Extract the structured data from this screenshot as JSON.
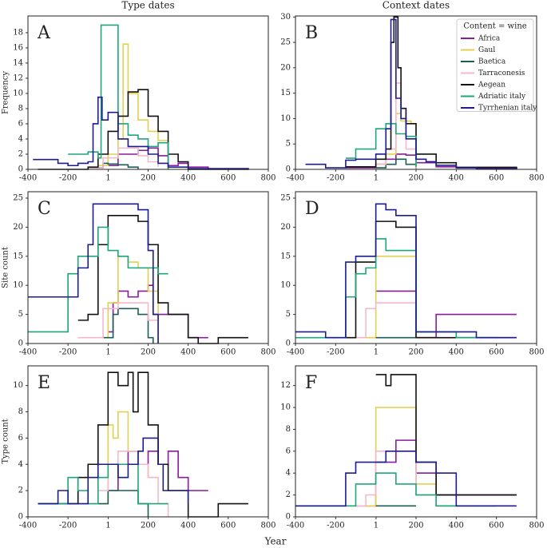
{
  "chart_data": [
    {
      "type": "line",
      "title": "Type dates",
      "panel_label": "A",
      "ylabel": "Frequency",
      "xlim": [
        -400,
        800
      ],
      "xticks": [
        -400,
        -200,
        1,
        200,
        400,
        600,
        800
      ],
      "ylim": [
        0,
        20.2
      ],
      "yticks": [
        0,
        2,
        4,
        6,
        8,
        10,
        12,
        14,
        16,
        18
      ],
      "series": [
        {
          "name": "Africa",
          "color": "#8b1a9c",
          "x": [
            -50,
            50,
            150,
            200,
            250,
            300,
            350,
            400,
            500
          ],
          "values": [
            0.5,
            2,
            2.5,
            2.8,
            1.8,
            0.5,
            0.8,
            0.3,
            0.1
          ]
        },
        {
          "name": "Gaul",
          "color": "#e3cf52",
          "x": [
            -50,
            0,
            50,
            75,
            100,
            150,
            200,
            250,
            300
          ],
          "values": [
            0.5,
            2,
            4,
            16.5,
            10,
            6.5,
            5,
            3.8,
            3.8
          ]
        },
        {
          "name": "Baetica",
          "color": "#1b5e55",
          "x": [
            -100,
            -25,
            0,
            50,
            100,
            150
          ],
          "values": [
            0.2,
            0.8,
            0.7,
            0.6,
            0.3,
            0
          ]
        },
        {
          "name": "Tarraconesis",
          "color": "#f5b8ca",
          "x": [
            -100,
            -25,
            50,
            150,
            200,
            250
          ],
          "values": [
            0.2,
            1.5,
            2.8,
            1.8,
            1,
            0.3
          ]
        },
        {
          "name": "Aegean",
          "color": "#111111",
          "x": [
            -350,
            -100,
            -50,
            0,
            50,
            100,
            150,
            200,
            250,
            300,
            350,
            400,
            700
          ],
          "values": [
            0,
            0.3,
            2,
            5,
            7,
            10.2,
            10.5,
            7,
            5,
            2,
            1,
            0,
            0.1
          ]
        },
        {
          "name": "Adriatic italy",
          "color": "#1ea67b",
          "x": [
            -200,
            -100,
            -50,
            -35,
            50,
            100,
            150,
            200,
            250,
            300
          ],
          "values": [
            2,
            2.3,
            1.5,
            19,
            6,
            4.5,
            4,
            3,
            3.5,
            0
          ]
        },
        {
          "name": "Tyrrhenian italy",
          "color": "#1c1c8e",
          "x": [
            -375,
            -250,
            -200,
            -150,
            -100,
            -75,
            -50,
            -30,
            0,
            50,
            100,
            200,
            250,
            300,
            400,
            700
          ],
          "values": [
            1.3,
            0.8,
            0.5,
            0.8,
            1,
            6,
            9.5,
            6.5,
            7.5,
            4,
            3,
            2,
            0.8,
            0.3,
            0.1,
            0
          ]
        }
      ]
    },
    {
      "type": "line",
      "title": "Context dates",
      "panel_label": "B",
      "legend_title": "Content = wine",
      "legend": "upper right",
      "xlim": [
        -400,
        800
      ],
      "xticks": [
        -400,
        -200,
        1,
        200,
        400,
        600,
        800
      ],
      "ylim": [
        0,
        30.2
      ],
      "yticks": [
        0,
        5,
        10,
        15,
        20,
        25,
        30
      ],
      "series": [
        {
          "name": "Africa",
          "color": "#8b1a9c",
          "x": [
            -150,
            0,
            50,
            100,
            150,
            200,
            300,
            400,
            700
          ],
          "values": [
            0.3,
            1,
            2,
            3,
            2.8,
            1.3,
            0.5,
            0.3,
            0
          ]
        },
        {
          "name": "Gaul",
          "color": "#e3cf52",
          "x": [
            0,
            50,
            100,
            125,
            175,
            200
          ],
          "values": [
            1,
            3,
            11,
            9.5,
            9,
            0.5
          ]
        },
        {
          "name": "Baetica",
          "color": "#1b5e55",
          "x": [
            0,
            50,
            100,
            150,
            200
          ],
          "values": [
            0.3,
            1,
            2,
            1,
            0.2
          ]
        },
        {
          "name": "Tarraconesis",
          "color": "#f5b8ca",
          "x": [
            0,
            50,
            100,
            125,
            150,
            200
          ],
          "values": [
            1,
            4,
            17,
            10,
            4,
            0.3
          ]
        },
        {
          "name": "Aegean",
          "color": "#111111",
          "x": [
            -150,
            0,
            50,
            75,
            90,
            110,
            125,
            150,
            200,
            300,
            400,
            700
          ],
          "values": [
            0.5,
            2,
            4,
            25,
            30,
            20,
            12,
            9,
            3,
            1.3,
            0.4,
            0
          ]
        },
        {
          "name": "Adriatic italy",
          "color": "#1ea67b",
          "x": [
            -150,
            -100,
            0,
            50,
            100,
            150,
            200
          ],
          "values": [
            2.2,
            4,
            8,
            9,
            7,
            6.5,
            0.5
          ]
        },
        {
          "name": "Tyrrhenian italy",
          "color": "#1c1c8e",
          "x": [
            -350,
            -250,
            -150,
            -100,
            0,
            50,
            75,
            100,
            125,
            150,
            200,
            250,
            300,
            400,
            500,
            700
          ],
          "values": [
            1,
            0.3,
            1.8,
            2,
            3,
            8,
            29.5,
            14,
            10,
            6,
            2,
            1.5,
            0.8,
            0.3,
            0.1,
            0
          ]
        }
      ]
    },
    {
      "type": "line",
      "panel_label": "C",
      "ylabel": "Site count",
      "xlim": [
        -400,
        800
      ],
      "xticks": [
        -400,
        -200,
        1,
        200,
        400,
        600,
        800
      ],
      "ylim": [
        0,
        26.1
      ],
      "yticks": [
        0,
        5,
        10,
        15,
        20,
        25
      ],
      "series": [
        {
          "name": "Africa",
          "color": "#8b1a9c",
          "x": [
            0,
            25,
            50,
            100,
            150,
            200,
            225,
            400,
            500
          ],
          "values": [
            2,
            7,
            9,
            8,
            9,
            10,
            5,
            1,
            1
          ]
        },
        {
          "name": "Gaul",
          "color": "#e3cf52",
          "x": [
            -50,
            0,
            50,
            100,
            150,
            200,
            250
          ],
          "values": [
            1,
            7,
            15,
            14,
            13,
            9,
            0
          ]
        },
        {
          "name": "Baetica",
          "color": "#1b5e55",
          "x": [
            -25,
            25,
            50,
            150,
            200,
            225
          ],
          "values": [
            1,
            5,
            6,
            5,
            1,
            0
          ]
        },
        {
          "name": "Tarraconesis",
          "color": "#f5b8ca",
          "x": [
            -150,
            -50,
            -25,
            50,
            150,
            200,
            250
          ],
          "values": [
            1,
            1,
            6,
            7,
            7,
            4,
            0
          ]
        },
        {
          "name": "Aegean",
          "color": "#111111",
          "x": [
            -150,
            -100,
            -50,
            0,
            150,
            200,
            250,
            300,
            400,
            450,
            550,
            700
          ],
          "values": [
            4,
            5,
            17,
            22,
            21,
            17,
            7,
            5,
            1,
            0,
            1,
            1
          ]
        },
        {
          "name": "Adriatic italy",
          "color": "#1ea67b",
          "x": [
            -400,
            -200,
            -150,
            -50,
            0,
            50,
            100,
            250,
            300
          ],
          "values": [
            2,
            12,
            15,
            20,
            16,
            15,
            13,
            12,
            12
          ]
        },
        {
          "name": "Tyrrhenian italy",
          "color": "#1c1c8e",
          "x": [
            -400,
            -150,
            -100,
            -75,
            150,
            200,
            225,
            250
          ],
          "values": [
            8,
            13,
            17,
            24,
            23,
            16,
            5,
            0
          ]
        }
      ]
    },
    {
      "type": "line",
      "panel_label": "D",
      "xlim": [
        -400,
        800
      ],
      "xticks": [
        -400,
        -200,
        1,
        200,
        400,
        600,
        800
      ],
      "ylim": [
        0,
        26.1
      ],
      "yticks": [
        0,
        5,
        10,
        15,
        20,
        25
      ],
      "series": [
        {
          "name": "Africa",
          "color": "#8b1a9c",
          "x": [
            0,
            200,
            300,
            700
          ],
          "values": [
            9,
            1,
            5,
            5
          ]
        },
        {
          "name": "Gaul",
          "color": "#e3cf52",
          "x": [
            -150,
            0,
            200,
            300
          ],
          "values": [
            1,
            15,
            1,
            1
          ]
        },
        {
          "name": "Baetica",
          "color": "#1b5e55",
          "x": [
            0,
            200
          ],
          "values": [
            1,
            1
          ]
        },
        {
          "name": "Tarraconesis",
          "color": "#f5b8ca",
          "x": [
            -100,
            -50,
            0,
            200,
            300
          ],
          "values": [
            1,
            6,
            7,
            1,
            1
          ]
        },
        {
          "name": "Aegean",
          "color": "#111111",
          "x": [
            -150,
            -100,
            0,
            100,
            200,
            700
          ],
          "values": [
            1,
            14,
            21,
            20,
            1,
            1
          ]
        },
        {
          "name": "Adriatic italy",
          "color": "#1ea67b",
          "x": [
            -400,
            -150,
            -100,
            -50,
            0,
            50,
            200,
            300,
            400,
            600
          ],
          "values": [
            1,
            8,
            12,
            13,
            18,
            16,
            2,
            2,
            1,
            1
          ]
        },
        {
          "name": "Tyrrhenian italy",
          "color": "#1c1c8e",
          "x": [
            -400,
            -250,
            -150,
            -100,
            0,
            50,
            100,
            200,
            500,
            700
          ],
          "values": [
            2,
            1,
            14,
            15,
            24,
            23,
            22,
            2,
            1,
            1
          ]
        }
      ]
    },
    {
      "type": "line",
      "panel_label": "E",
      "ylabel": "Type count",
      "xlabel": "Year",
      "xlim": [
        -400,
        800
      ],
      "xticks": [
        -400,
        -200,
        1,
        200,
        400,
        600,
        800
      ],
      "ylim": [
        0,
        11.5
      ],
      "yticks": [
        0,
        2,
        4,
        6,
        8,
        10
      ],
      "series": [
        {
          "name": "Africa",
          "color": "#8b1a9c",
          "x": [
            0,
            50,
            100,
            150,
            200,
            250,
            300,
            350,
            400,
            500
          ],
          "values": [
            2,
            4,
            5,
            4,
            5,
            4,
            5,
            3,
            2,
            2
          ]
        },
        {
          "name": "Gaul",
          "color": "#e3cf52",
          "x": [
            -50,
            0,
            25,
            50,
            100,
            150,
            200,
            250
          ],
          "values": [
            1,
            7,
            6,
            8,
            5,
            4,
            3,
            3
          ]
        },
        {
          "name": "Baetica",
          "color": "#1b5e55",
          "x": [
            -50,
            0,
            150,
            200
          ],
          "values": [
            1,
            2,
            1,
            0
          ]
        },
        {
          "name": "Tarraconesis",
          "color": "#f5b8ca",
          "x": [
            -150,
            -50,
            0,
            50,
            150,
            200,
            250,
            300
          ],
          "values": [
            1,
            2,
            4,
            5,
            4,
            3,
            1,
            0
          ]
        },
        {
          "name": "Aegean",
          "color": "#111111",
          "x": [
            -350,
            -150,
            -100,
            -50,
            0,
            50,
            100,
            125,
            150,
            200,
            250,
            300,
            400,
            550,
            700
          ],
          "values": [
            1,
            3,
            4,
            7,
            11,
            10,
            11,
            8,
            11,
            7,
            4,
            2,
            0,
            1,
            1
          ]
        },
        {
          "name": "Adriatic italy",
          "color": "#1ea67b",
          "x": [
            -350,
            -200,
            -150,
            -100,
            -50,
            0,
            100,
            150,
            250,
            300
          ],
          "values": [
            1,
            3,
            2,
            1,
            3,
            4,
            4,
            1,
            1,
            1
          ]
        },
        {
          "name": "Tyrrhenian italy",
          "color": "#1c1c8e",
          "x": [
            -350,
            -250,
            -200,
            -100,
            -50,
            50,
            100,
            150,
            175,
            250,
            275,
            400
          ],
          "values": [
            1,
            2,
            1,
            3,
            4,
            3,
            4,
            5,
            6,
            4,
            2,
            1
          ]
        }
      ]
    },
    {
      "type": "line",
      "panel_label": "F",
      "xlim": [
        -400,
        800
      ],
      "xticks": [
        -400,
        -200,
        1,
        200,
        400,
        600,
        800
      ],
      "ylim": [
        0,
        13.8
      ],
      "yticks": [
        0,
        2,
        4,
        6,
        8,
        10,
        12
      ],
      "series": [
        {
          "name": "Africa",
          "color": "#8b1a9c",
          "x": [
            -100,
            0,
            100,
            200,
            300,
            700
          ],
          "values": [
            1,
            5,
            7,
            4,
            2,
            2
          ]
        },
        {
          "name": "Gaul",
          "color": "#e3cf52",
          "x": [
            -100,
            0,
            200,
            300,
            400
          ],
          "values": [
            1,
            10,
            3,
            1,
            1
          ]
        },
        {
          "name": "Baetica",
          "color": "#1b5e55",
          "x": [
            0,
            200
          ],
          "values": [
            1,
            1
          ]
        },
        {
          "name": "Tarraconesis",
          "color": "#f5b8ca",
          "x": [
            -100,
            -50,
            0,
            100,
            200,
            300,
            500
          ],
          "values": [
            1,
            2,
            6,
            6,
            2,
            1,
            1
          ]
        },
        {
          "name": "Aegean",
          "color": "#111111",
          "x": [
            0,
            50,
            75,
            200,
            300,
            700
          ],
          "values": [
            13,
            12,
            13,
            5,
            2,
            2
          ]
        },
        {
          "name": "Adriatic italy",
          "color": "#1ea67b",
          "x": [
            -400,
            -100,
            0,
            100,
            200,
            300,
            600
          ],
          "values": [
            1,
            3,
            4,
            3,
            2,
            1,
            1
          ]
        },
        {
          "name": "Tyrrhenian italy",
          "color": "#1c1c8e",
          "x": [
            -400,
            -150,
            -100,
            50,
            200,
            300,
            400,
            700
          ],
          "values": [
            1,
            4,
            5,
            6,
            5,
            4,
            1,
            1
          ]
        }
      ]
    }
  ]
}
